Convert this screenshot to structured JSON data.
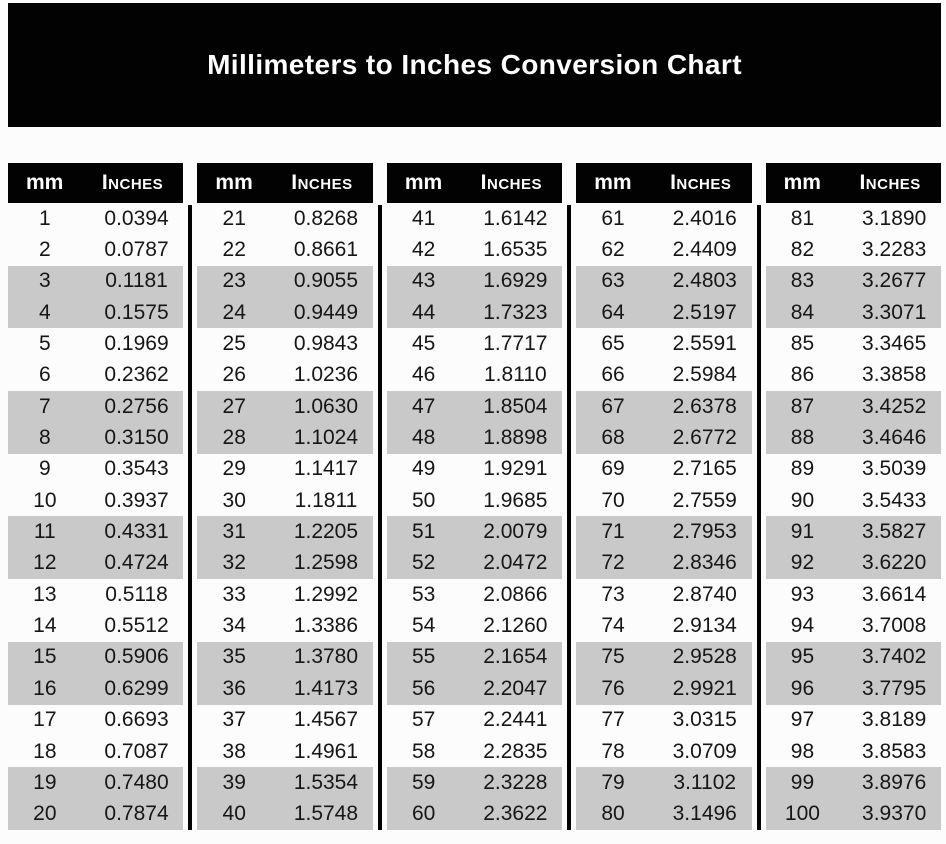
{
  "title": "Millimeters to Inches Conversion Chart",
  "columns": {
    "mm_label": "mm",
    "inches_label": "Inches"
  },
  "colors": {
    "header_bg": "#020202",
    "header_text": "#ffffff",
    "stripe": "#c9c9c9",
    "row_text": "#161616",
    "background": "#fcfcfc"
  },
  "chart_data": {
    "type": "table",
    "title": "Millimeters to Inches Conversion Chart",
    "columns": [
      "mm",
      "Inches"
    ],
    "column_groups": 5,
    "rows_per_group": 20,
    "striping": "alternating pairs of rows shaded gray (rows 3-4, 7-8, 11-12, 15-16, 19-20 of each group)",
    "rows": [
      [
        1,
        "0.0394"
      ],
      [
        2,
        "0.0787"
      ],
      [
        3,
        "0.1181"
      ],
      [
        4,
        "0.1575"
      ],
      [
        5,
        "0.1969"
      ],
      [
        6,
        "0.2362"
      ],
      [
        7,
        "0.2756"
      ],
      [
        8,
        "0.3150"
      ],
      [
        9,
        "0.3543"
      ],
      [
        10,
        "0.3937"
      ],
      [
        11,
        "0.4331"
      ],
      [
        12,
        "0.4724"
      ],
      [
        13,
        "0.5118"
      ],
      [
        14,
        "0.5512"
      ],
      [
        15,
        "0.5906"
      ],
      [
        16,
        "0.6299"
      ],
      [
        17,
        "0.6693"
      ],
      [
        18,
        "0.7087"
      ],
      [
        19,
        "0.7480"
      ],
      [
        20,
        "0.7874"
      ],
      [
        21,
        "0.8268"
      ],
      [
        22,
        "0.8661"
      ],
      [
        23,
        "0.9055"
      ],
      [
        24,
        "0.9449"
      ],
      [
        25,
        "0.9843"
      ],
      [
        26,
        "1.0236"
      ],
      [
        27,
        "1.0630"
      ],
      [
        28,
        "1.1024"
      ],
      [
        29,
        "1.1417"
      ],
      [
        30,
        "1.1811"
      ],
      [
        31,
        "1.2205"
      ],
      [
        32,
        "1.2598"
      ],
      [
        33,
        "1.2992"
      ],
      [
        34,
        "1.3386"
      ],
      [
        35,
        "1.3780"
      ],
      [
        36,
        "1.4173"
      ],
      [
        37,
        "1.4567"
      ],
      [
        38,
        "1.4961"
      ],
      [
        39,
        "1.5354"
      ],
      [
        40,
        "1.5748"
      ],
      [
        41,
        "1.6142"
      ],
      [
        42,
        "1.6535"
      ],
      [
        43,
        "1.6929"
      ],
      [
        44,
        "1.7323"
      ],
      [
        45,
        "1.7717"
      ],
      [
        46,
        "1.8110"
      ],
      [
        47,
        "1.8504"
      ],
      [
        48,
        "1.8898"
      ],
      [
        49,
        "1.9291"
      ],
      [
        50,
        "1.9685"
      ],
      [
        51,
        "2.0079"
      ],
      [
        52,
        "2.0472"
      ],
      [
        53,
        "2.0866"
      ],
      [
        54,
        "2.1260"
      ],
      [
        55,
        "2.1654"
      ],
      [
        56,
        "2.2047"
      ],
      [
        57,
        "2.2441"
      ],
      [
        58,
        "2.2835"
      ],
      [
        59,
        "2.3228"
      ],
      [
        60,
        "2.3622"
      ],
      [
        61,
        "2.4016"
      ],
      [
        62,
        "2.4409"
      ],
      [
        63,
        "2.4803"
      ],
      [
        64,
        "2.5197"
      ],
      [
        65,
        "2.5591"
      ],
      [
        66,
        "2.5984"
      ],
      [
        67,
        "2.6378"
      ],
      [
        68,
        "2.6772"
      ],
      [
        69,
        "2.7165"
      ],
      [
        70,
        "2.7559"
      ],
      [
        71,
        "2.7953"
      ],
      [
        72,
        "2.8346"
      ],
      [
        73,
        "2.8740"
      ],
      [
        74,
        "2.9134"
      ],
      [
        75,
        "2.9528"
      ],
      [
        76,
        "2.9921"
      ],
      [
        77,
        "3.0315"
      ],
      [
        78,
        "3.0709"
      ],
      [
        79,
        "3.1102"
      ],
      [
        80,
        "3.1496"
      ],
      [
        81,
        "3.1890"
      ],
      [
        82,
        "3.2283"
      ],
      [
        83,
        "3.2677"
      ],
      [
        84,
        "3.3071"
      ],
      [
        85,
        "3.3465"
      ],
      [
        86,
        "3.3858"
      ],
      [
        87,
        "3.4252"
      ],
      [
        88,
        "3.4646"
      ],
      [
        89,
        "3.5039"
      ],
      [
        90,
        "3.5433"
      ],
      [
        91,
        "3.5827"
      ],
      [
        92,
        "3.6220"
      ],
      [
        93,
        "3.6614"
      ],
      [
        94,
        "3.7008"
      ],
      [
        95,
        "3.7402"
      ],
      [
        96,
        "3.7795"
      ],
      [
        97,
        "3.8189"
      ],
      [
        98,
        "3.8583"
      ],
      [
        99,
        "3.8976"
      ],
      [
        100,
        "3.9370"
      ]
    ]
  }
}
